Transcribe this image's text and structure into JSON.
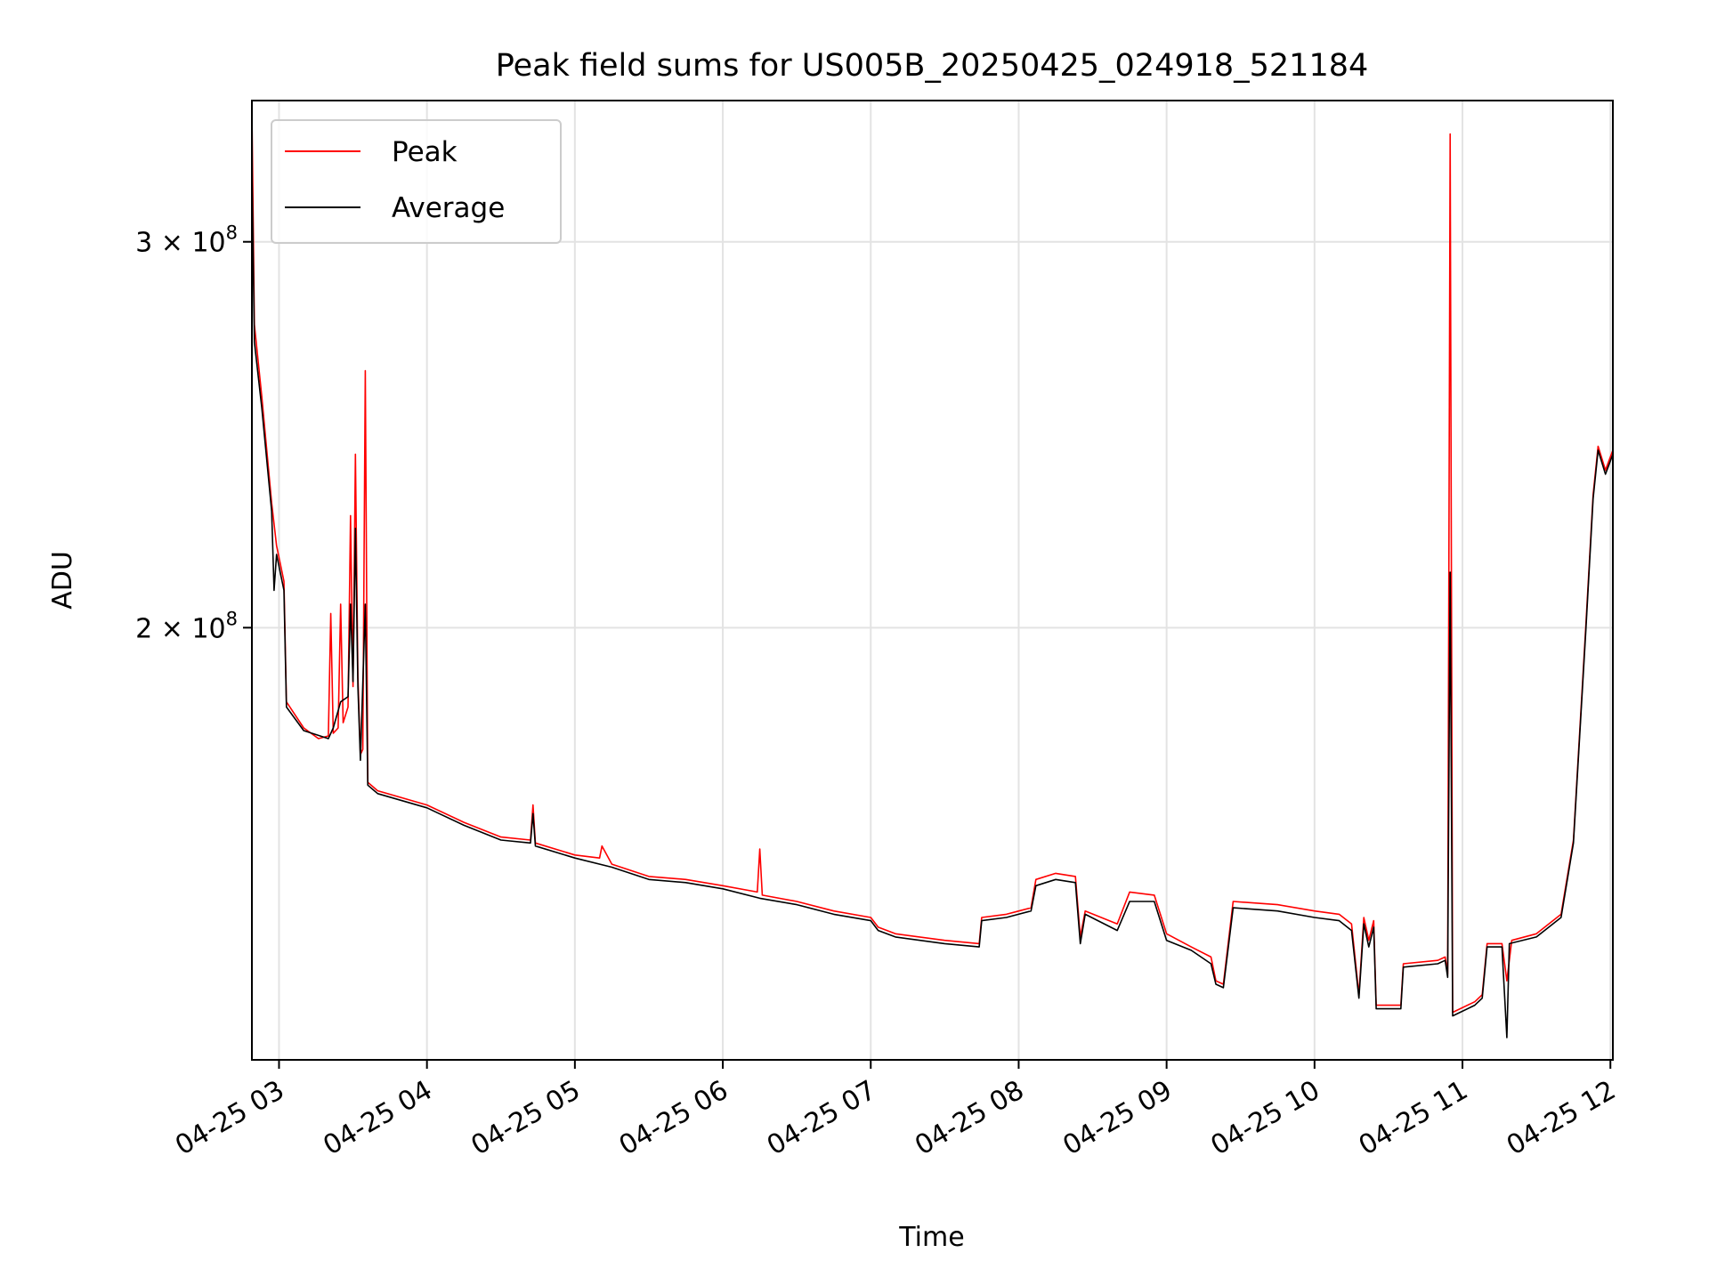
{
  "chart_data": {
    "type": "line",
    "title": "Peak field sums for US005B_20250425_024918_521184",
    "xlabel": "Time",
    "ylabel": "ADU",
    "yscale": "log",
    "ylim": [
      127000000,
      348000000
    ],
    "xlim": [
      "2025-04-25 02:49:00",
      "2025-04-25 12:01:00"
    ],
    "grid": true,
    "legend_position": "upper left",
    "x_ticks": [
      {
        "value": "2025-04-25 03:00",
        "label": "04-25 03"
      },
      {
        "value": "2025-04-25 04:00",
        "label": "04-25 04"
      },
      {
        "value": "2025-04-25 05:00",
        "label": "04-25 05"
      },
      {
        "value": "2025-04-25 06:00",
        "label": "04-25 06"
      },
      {
        "value": "2025-04-25 07:00",
        "label": "04-25 07"
      },
      {
        "value": "2025-04-25 08:00",
        "label": "04-25 08"
      },
      {
        "value": "2025-04-25 09:00",
        "label": "04-25 09"
      },
      {
        "value": "2025-04-25 10:00",
        "label": "04-25 10"
      },
      {
        "value": "2025-04-25 11:00",
        "label": "04-25 11"
      },
      {
        "value": "2025-04-25 12:00",
        "label": "04-25 12"
      }
    ],
    "y_ticks": [
      {
        "value": 200000000,
        "mantissa": "2",
        "base": "10",
        "exp": "8"
      },
      {
        "value": 300000000,
        "mantissa": "3",
        "base": "10",
        "exp": "8"
      }
    ],
    "series": [
      {
        "name": "Peak",
        "color": "#ff0000",
        "points": [
          [
            "2025-04-25 02:49",
            345000000
          ],
          [
            "2025-04-25 02:50",
            275000000
          ],
          [
            "2025-04-25 02:53",
            255000000
          ],
          [
            "2025-04-25 02:57",
            228000000
          ],
          [
            "2025-04-25 02:59",
            218000000
          ],
          [
            "2025-04-25 03:02",
            210000000
          ],
          [
            "2025-04-25 03:03",
            185000000
          ],
          [
            "2025-04-25 03:10",
            180000000
          ],
          [
            "2025-04-25 03:16",
            178000000
          ],
          [
            "2025-04-25 03:20",
            178500000
          ],
          [
            "2025-04-25 03:21",
            203000000
          ],
          [
            "2025-04-25 03:22",
            179000000
          ],
          [
            "2025-04-25 03:24",
            180000000
          ],
          [
            "2025-04-25 03:25",
            205000000
          ],
          [
            "2025-04-25 03:26",
            181000000
          ],
          [
            "2025-04-25 03:28",
            184000000
          ],
          [
            "2025-04-25 03:29",
            225000000
          ],
          [
            "2025-04-25 03:30",
            188000000
          ],
          [
            "2025-04-25 03:31",
            240000000
          ],
          [
            "2025-04-25 03:32",
            190000000
          ],
          [
            "2025-04-25 03:33",
            175000000
          ],
          [
            "2025-04-25 03:34",
            176000000
          ],
          [
            "2025-04-25 03:35",
            262000000
          ],
          [
            "2025-04-25 03:36",
            170000000
          ],
          [
            "2025-04-25 03:40",
            168500000
          ],
          [
            "2025-04-25 04:00",
            166000000
          ],
          [
            "2025-04-25 04:15",
            163000000
          ],
          [
            "2025-04-25 04:30",
            160500000
          ],
          [
            "2025-04-25 04:42",
            160000000
          ],
          [
            "2025-04-25 04:43",
            166000000
          ],
          [
            "2025-04-25 04:44",
            159500000
          ],
          [
            "2025-04-25 05:00",
            157500000
          ],
          [
            "2025-04-25 05:10",
            157000000
          ],
          [
            "2025-04-25 05:11",
            159000000
          ],
          [
            "2025-04-25 05:15",
            156000000
          ],
          [
            "2025-04-25 05:30",
            154000000
          ],
          [
            "2025-04-25 05:45",
            153500000
          ],
          [
            "2025-04-25 06:00",
            152500000
          ],
          [
            "2025-04-25 06:14",
            151500000
          ],
          [
            "2025-04-25 06:15",
            158500000
          ],
          [
            "2025-04-25 06:16",
            151000000
          ],
          [
            "2025-04-25 06:30",
            150000000
          ],
          [
            "2025-04-25 06:45",
            148500000
          ],
          [
            "2025-04-25 07:00",
            147500000
          ],
          [
            "2025-04-25 07:03",
            146000000
          ],
          [
            "2025-04-25 07:10",
            145000000
          ],
          [
            "2025-04-25 07:30",
            144000000
          ],
          [
            "2025-04-25 07:44",
            143500000
          ],
          [
            "2025-04-25 07:45",
            147500000
          ],
          [
            "2025-04-25 07:55",
            148000000
          ],
          [
            "2025-04-25 08:05",
            149000000
          ],
          [
            "2025-04-25 08:07",
            153500000
          ],
          [
            "2025-04-25 08:15",
            154500000
          ],
          [
            "2025-04-25 08:23",
            154000000
          ],
          [
            "2025-04-25 08:25",
            144500000
          ],
          [
            "2025-04-25 08:27",
            148500000
          ],
          [
            "2025-04-25 08:40",
            146500000
          ],
          [
            "2025-04-25 08:45",
            151500000
          ],
          [
            "2025-04-25 08:55",
            151000000
          ],
          [
            "2025-04-25 09:00",
            145000000
          ],
          [
            "2025-04-25 09:10",
            143000000
          ],
          [
            "2025-04-25 09:18",
            141500000
          ],
          [
            "2025-04-25 09:20",
            138000000
          ],
          [
            "2025-04-25 09:23",
            137500000
          ],
          [
            "2025-04-25 09:27",
            150000000
          ],
          [
            "2025-04-25 09:45",
            149500000
          ],
          [
            "2025-04-25 10:00",
            148500000
          ],
          [
            "2025-04-25 10:10",
            148000000
          ],
          [
            "2025-04-25 10:15",
            146500000
          ],
          [
            "2025-04-25 10:18",
            136000000
          ],
          [
            "2025-04-25 10:20",
            147500000
          ],
          [
            "2025-04-25 10:22",
            144000000
          ],
          [
            "2025-04-25 10:24",
            147000000
          ],
          [
            "2025-04-25 10:25",
            134500000
          ],
          [
            "2025-04-25 10:35",
            134500000
          ],
          [
            "2025-04-25 10:36",
            140500000
          ],
          [
            "2025-04-25 10:50",
            141000000
          ],
          [
            "2025-04-25 10:53",
            141500000
          ],
          [
            "2025-04-25 10:54",
            139000000
          ],
          [
            "2025-04-25 10:55",
            336000000
          ],
          [
            "2025-04-25 10:56",
            133500000
          ],
          [
            "2025-04-25 11:05",
            135000000
          ],
          [
            "2025-04-25 11:08",
            136000000
          ],
          [
            "2025-04-25 11:10",
            143500000
          ],
          [
            "2025-04-25 11:16",
            143500000
          ],
          [
            "2025-04-25 11:18",
            138000000
          ],
          [
            "2025-04-25 11:20",
            144000000
          ],
          [
            "2025-04-25 11:30",
            145000000
          ],
          [
            "2025-04-25 11:40",
            148000000
          ],
          [
            "2025-04-25 11:45",
            160000000
          ],
          [
            "2025-04-25 11:50",
            200000000
          ],
          [
            "2025-04-25 11:53",
            230000000
          ],
          [
            "2025-04-25 11:55",
            242000000
          ],
          [
            "2025-04-25 11:58",
            236000000
          ],
          [
            "2025-04-25 12:01",
            241000000
          ]
        ]
      },
      {
        "name": "Average",
        "color": "#000000",
        "points": [
          [
            "2025-04-25 02:49",
            325000000
          ],
          [
            "2025-04-25 02:50",
            270000000
          ],
          [
            "2025-04-25 02:53",
            252000000
          ],
          [
            "2025-04-25 02:57",
            226000000
          ],
          [
            "2025-04-25 02:58",
            208000000
          ],
          [
            "2025-04-25 02:59",
            216000000
          ],
          [
            "2025-04-25 03:02",
            208000000
          ],
          [
            "2025-04-25 03:03",
            184000000
          ],
          [
            "2025-04-25 03:10",
            179500000
          ],
          [
            "2025-04-25 03:20",
            178000000
          ],
          [
            "2025-04-25 03:22",
            180000000
          ],
          [
            "2025-04-25 03:25",
            185000000
          ],
          [
            "2025-04-25 03:28",
            186000000
          ],
          [
            "2025-04-25 03:29",
            205000000
          ],
          [
            "2025-04-25 03:30",
            189000000
          ],
          [
            "2025-04-25 03:31",
            222000000
          ],
          [
            "2025-04-25 03:32",
            188000000
          ],
          [
            "2025-04-25 03:33",
            174000000
          ],
          [
            "2025-04-25 03:35",
            205000000
          ],
          [
            "2025-04-25 03:36",
            169500000
          ],
          [
            "2025-04-25 03:40",
            168000000
          ],
          [
            "2025-04-25 04:00",
            165500000
          ],
          [
            "2025-04-25 04:15",
            162500000
          ],
          [
            "2025-04-25 04:30",
            160000000
          ],
          [
            "2025-04-25 04:42",
            159500000
          ],
          [
            "2025-04-25 04:43",
            164500000
          ],
          [
            "2025-04-25 04:44",
            159000000
          ],
          [
            "2025-04-25 05:00",
            157000000
          ],
          [
            "2025-04-25 05:15",
            155500000
          ],
          [
            "2025-04-25 05:30",
            153500000
          ],
          [
            "2025-04-25 05:45",
            153000000
          ],
          [
            "2025-04-25 06:00",
            152000000
          ],
          [
            "2025-04-25 06:15",
            150500000
          ],
          [
            "2025-04-25 06:30",
            149500000
          ],
          [
            "2025-04-25 06:45",
            148000000
          ],
          [
            "2025-04-25 07:00",
            147000000
          ],
          [
            "2025-04-25 07:03",
            145500000
          ],
          [
            "2025-04-25 07:10",
            144500000
          ],
          [
            "2025-04-25 07:30",
            143500000
          ],
          [
            "2025-04-25 07:44",
            143000000
          ],
          [
            "2025-04-25 07:45",
            147000000
          ],
          [
            "2025-04-25 07:55",
            147500000
          ],
          [
            "2025-04-25 08:05",
            148500000
          ],
          [
            "2025-04-25 08:07",
            152500000
          ],
          [
            "2025-04-25 08:15",
            153500000
          ],
          [
            "2025-04-25 08:23",
            153000000
          ],
          [
            "2025-04-25 08:25",
            143500000
          ],
          [
            "2025-04-25 08:27",
            148000000
          ],
          [
            "2025-04-25 08:40",
            145500000
          ],
          [
            "2025-04-25 08:45",
            150000000
          ],
          [
            "2025-04-25 08:55",
            150000000
          ],
          [
            "2025-04-25 09:00",
            144000000
          ],
          [
            "2025-04-25 09:10",
            142500000
          ],
          [
            "2025-04-25 09:18",
            140500000
          ],
          [
            "2025-04-25 09:20",
            137500000
          ],
          [
            "2025-04-25 09:23",
            137000000
          ],
          [
            "2025-04-25 09:27",
            149000000
          ],
          [
            "2025-04-25 09:45",
            148500000
          ],
          [
            "2025-04-25 10:00",
            147500000
          ],
          [
            "2025-04-25 10:10",
            147000000
          ],
          [
            "2025-04-25 10:15",
            145500000
          ],
          [
            "2025-04-25 10:18",
            135500000
          ],
          [
            "2025-04-25 10:20",
            146500000
          ],
          [
            "2025-04-25 10:22",
            143000000
          ],
          [
            "2025-04-25 10:24",
            146000000
          ],
          [
            "2025-04-25 10:25",
            134000000
          ],
          [
            "2025-04-25 10:35",
            134000000
          ],
          [
            "2025-04-25 10:36",
            140000000
          ],
          [
            "2025-04-25 10:50",
            140500000
          ],
          [
            "2025-04-25 10:53",
            141000000
          ],
          [
            "2025-04-25 10:54",
            138500000
          ],
          [
            "2025-04-25 10:55",
            212000000
          ],
          [
            "2025-04-25 10:56",
            133000000
          ],
          [
            "2025-04-25 11:05",
            134500000
          ],
          [
            "2025-04-25 11:08",
            135500000
          ],
          [
            "2025-04-25 11:10",
            143000000
          ],
          [
            "2025-04-25 11:16",
            143000000
          ],
          [
            "2025-04-25 11:18",
            130000000
          ],
          [
            "2025-04-25 11:19",
            143500000
          ],
          [
            "2025-04-25 11:30",
            144500000
          ],
          [
            "2025-04-25 11:40",
            147500000
          ],
          [
            "2025-04-25 11:45",
            159500000
          ],
          [
            "2025-04-25 11:50",
            199000000
          ],
          [
            "2025-04-25 11:53",
            229000000
          ],
          [
            "2025-04-25 11:55",
            241000000
          ],
          [
            "2025-04-25 11:58",
            235000000
          ],
          [
            "2025-04-25 12:01",
            240000000
          ]
        ]
      }
    ]
  }
}
